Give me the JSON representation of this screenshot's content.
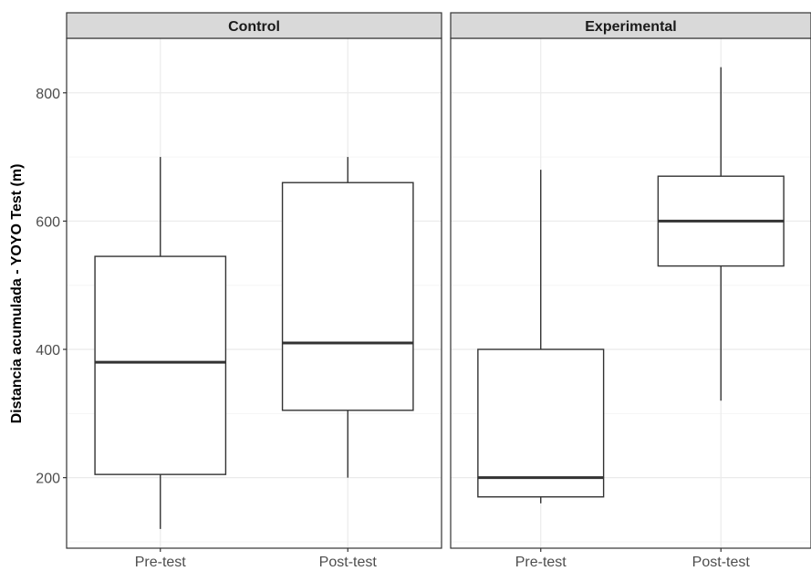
{
  "chart_data": {
    "type": "boxplot",
    "ylabel": "Distancia acumulada - YOYO Test (m)",
    "xlabel": "",
    "ylim": [
      90,
      885
    ],
    "yticks": [
      200,
      400,
      600,
      800
    ],
    "categories": [
      "Pre-test",
      "Post-test"
    ],
    "grid": true,
    "panels": [
      {
        "title": "Control",
        "boxes": [
          {
            "category": "Pre-test",
            "min": 120,
            "q1": 205,
            "median": 380,
            "q3": 545,
            "max": 700
          },
          {
            "category": "Post-test",
            "min": 200,
            "q1": 305,
            "median": 410,
            "q3": 660,
            "max": 700
          }
        ]
      },
      {
        "title": "Experimental",
        "boxes": [
          {
            "category": "Pre-test",
            "min": 160,
            "q1": 170,
            "median": 200,
            "q3": 400,
            "max": 680
          },
          {
            "category": "Post-test",
            "min": 320,
            "q1": 530,
            "median": 600,
            "q3": 670,
            "max": 840
          }
        ]
      }
    ]
  },
  "colors": {
    "strip_fill": "#d9d9d9",
    "panel_border": "#333333",
    "grid_major": "#ebebeb",
    "grid_minor": "#f5f5f5",
    "box_line": "#333333",
    "median_line": "#333333"
  }
}
